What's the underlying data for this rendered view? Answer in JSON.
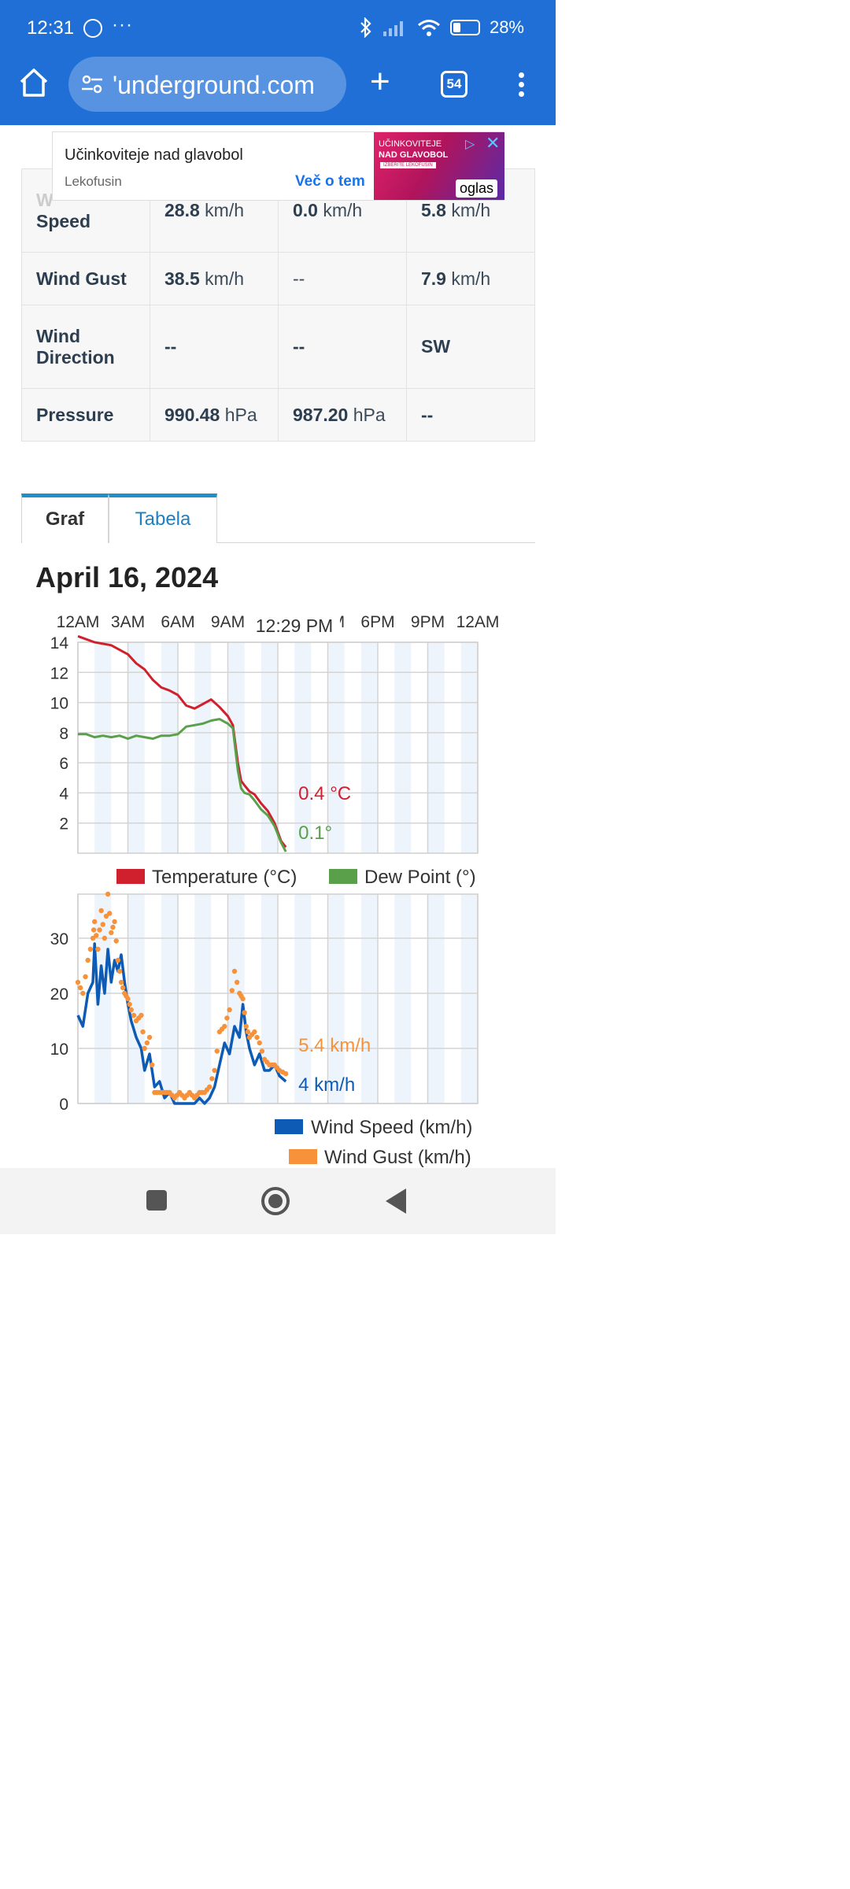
{
  "status_bar": {
    "time": "12:31",
    "dots": "···",
    "battery": "28%"
  },
  "browser": {
    "url": "'underground.com",
    "tab_count": "54"
  },
  "ad": {
    "title": "Učinkoviteje nad glavobol",
    "brand": "Lekofusin",
    "more": "Več o tem",
    "image_line1": "UČINKOVITEJE",
    "image_line2": "NAD GLAVOBOL",
    "image_button": "IZBERITE LEKOFUSIN",
    "oglas": "oglas"
  },
  "summary_table": {
    "rows": [
      {
        "label_a": "W",
        "label_b": "Speed",
        "c1_val": "28.8",
        "c1_unit": "km/h",
        "c2_val": "0.0",
        "c2_unit": "km/h",
        "c3_val": "5.8",
        "c3_unit": "km/h"
      },
      {
        "label_a": "Wind Gust",
        "label_b": "",
        "c1_val": "38.5",
        "c1_unit": "km/h",
        "c2_val": "--",
        "c2_unit": "",
        "c3_val": "7.9",
        "c3_unit": "km/h"
      },
      {
        "label_a": "Wind",
        "label_b": "Direction",
        "c1_val": "--",
        "c1_unit": "",
        "c2_val": "--",
        "c2_unit": "",
        "c3_val": "SW",
        "c3_unit": ""
      },
      {
        "label_a": "Pressure",
        "label_b": "",
        "c1_val": "990.48",
        "c1_unit": "hPa",
        "c2_val": "987.20",
        "c2_unit": "hPa",
        "c3_val": "--",
        "c3_unit": ""
      }
    ]
  },
  "tabs": {
    "graph": "Graf",
    "table": "Tabela"
  },
  "date_title": "April 16, 2024",
  "colors": {
    "temperature": "#d0202e",
    "dew_point": "#5aa04a",
    "wind_speed": "#0d5bb5",
    "wind_gust": "#f7923a",
    "header_blue": "#1f6fd6"
  },
  "chart_data": [
    {
      "type": "line",
      "x_ticks": [
        "12AM",
        "3AM",
        "6AM",
        "9AM",
        "12PM",
        "3PM",
        "6PM",
        "9PM",
        "12AM"
      ],
      "x_unit": "hour",
      "xlim": [
        0,
        24
      ],
      "ylim": [
        0,
        14
      ],
      "y_ticks": [
        2,
        4,
        6,
        8,
        10,
        12,
        14
      ],
      "cursor_label": "12:29 PM",
      "series": [
        {
          "name": "Temperature (°C)",
          "x": [
            0,
            0.5,
            1,
            1.5,
            2,
            2.5,
            3,
            3.5,
            4,
            4.5,
            5,
            5.5,
            6,
            6.5,
            7,
            7.5,
            8,
            8.5,
            9,
            9.3,
            9.6,
            9.8,
            10,
            10.3,
            10.6,
            11,
            11.4,
            11.8,
            12.2,
            12.48
          ],
          "y": [
            14.4,
            14.2,
            14.0,
            13.9,
            13.8,
            13.5,
            13.2,
            12.6,
            12.2,
            11.5,
            11.0,
            10.8,
            10.5,
            9.8,
            9.6,
            9.9,
            10.2,
            9.7,
            9.1,
            8.5,
            6.0,
            4.8,
            4.5,
            4.1,
            3.9,
            3.3,
            2.8,
            2.0,
            0.8,
            0.4
          ],
          "last_label": "0.4 °C"
        },
        {
          "name": "Dew Point (°)",
          "x": [
            0,
            0.5,
            1,
            1.5,
            2,
            2.5,
            3,
            3.5,
            4,
            4.5,
            5,
            5.5,
            6,
            6.5,
            7,
            7.5,
            8,
            8.5,
            9,
            9.3,
            9.6,
            9.8,
            10,
            10.3,
            10.6,
            11,
            11.4,
            11.8,
            12.2,
            12.48
          ],
          "y": [
            7.9,
            7.9,
            7.7,
            7.8,
            7.7,
            7.8,
            7.6,
            7.8,
            7.7,
            7.6,
            7.8,
            7.8,
            7.9,
            8.4,
            8.5,
            8.6,
            8.8,
            8.9,
            8.6,
            8.3,
            5.5,
            4.3,
            4.0,
            3.9,
            3.5,
            2.9,
            2.5,
            1.8,
            0.7,
            0.1
          ],
          "last_label": "0.1°"
        }
      ]
    },
    {
      "type": "line",
      "x_unit": "hour",
      "xlim": [
        0,
        24
      ],
      "ylim": [
        0,
        38
      ],
      "y_ticks": [
        0,
        10,
        20,
        30
      ],
      "series": [
        {
          "name": "Wind Speed (km/h)",
          "x": [
            0,
            0.3,
            0.6,
            0.9,
            1.0,
            1.2,
            1.4,
            1.6,
            1.8,
            2.0,
            2.2,
            2.4,
            2.6,
            2.8,
            3.0,
            3.2,
            3.5,
            3.8,
            4.0,
            4.3,
            4.6,
            4.9,
            5.2,
            5.5,
            5.8,
            6.1,
            6.4,
            6.7,
            7.0,
            7.3,
            7.6,
            7.9,
            8.2,
            8.5,
            8.8,
            9.1,
            9.4,
            9.7,
            9.9,
            10.1,
            10.3,
            10.6,
            10.9,
            11.2,
            11.5,
            11.8,
            12.1,
            12.48
          ],
          "y": [
            16,
            14,
            20,
            22,
            29,
            18,
            25,
            20,
            28,
            22,
            26,
            24,
            27,
            22,
            18,
            15,
            12,
            10,
            6,
            9,
            3,
            4,
            1,
            2,
            0,
            0,
            0,
            0,
            0,
            1,
            0,
            1,
            3,
            7,
            11,
            9,
            14,
            12,
            18,
            13,
            10,
            7,
            9,
            6,
            6,
            7,
            5,
            4
          ],
          "last_label": "4 km/h"
        },
        {
          "name": "Wind Gust (km/h)",
          "x": [
            0,
            0.3,
            0.6,
            0.9,
            1.0,
            1.2,
            1.4,
            1.6,
            1.8,
            2.0,
            2.2,
            2.4,
            2.6,
            2.8,
            3.0,
            3.2,
            3.5,
            3.8,
            4.0,
            4.3,
            4.6,
            4.9,
            5.2,
            5.5,
            5.8,
            6.1,
            6.4,
            6.7,
            7.0,
            7.3,
            7.6,
            7.9,
            8.2,
            8.5,
            8.8,
            9.1,
            9.4,
            9.7,
            9.9,
            10.1,
            10.3,
            10.6,
            10.9,
            11.2,
            11.5,
            11.8,
            12.1,
            12.48
          ],
          "y": [
            22,
            20,
            26,
            30,
            33,
            28,
            35,
            30,
            38,
            31,
            33,
            26,
            22,
            20,
            19,
            17,
            15,
            16,
            10,
            12,
            2,
            2,
            2,
            2,
            1,
            2,
            1,
            2,
            1,
            2,
            2,
            3,
            6,
            13,
            14,
            17,
            24,
            20,
            19,
            14,
            12,
            13,
            11,
            8,
            7,
            7,
            6,
            5.4
          ],
          "last_label": "5.4 km/h"
        }
      ]
    }
  ]
}
